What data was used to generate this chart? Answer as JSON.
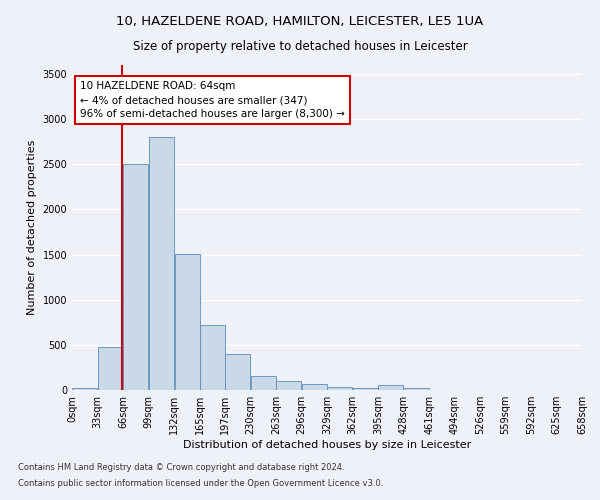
{
  "title1": "10, HAZELDENE ROAD, HAMILTON, LEICESTER, LE5 1UA",
  "title2": "Size of property relative to detached houses in Leicester",
  "xlabel": "Distribution of detached houses by size in Leicester",
  "ylabel": "Number of detached properties",
  "footer1": "Contains HM Land Registry data © Crown copyright and database right 2024.",
  "footer2": "Contains public sector information licensed under the Open Government Licence v3.0.",
  "annotation_title": "10 HAZELDENE ROAD: 64sqm",
  "annotation_line2": "← 4% of detached houses are smaller (347)",
  "annotation_line3": "96% of semi-detached houses are larger (8,300) →",
  "property_size": 64,
  "bar_left_edges": [
    0,
    33,
    66,
    99,
    132,
    165,
    197,
    230,
    263,
    296,
    329,
    362,
    395,
    428,
    461,
    494,
    526,
    559,
    592,
    625
  ],
  "bar_widths": [
    33,
    33,
    33,
    33,
    33,
    33,
    33,
    33,
    33,
    33,
    33,
    33,
    33,
    33,
    33,
    33,
    33,
    33,
    33,
    33
  ],
  "bar_heights": [
    25,
    475,
    2500,
    2800,
    1510,
    725,
    400,
    160,
    100,
    65,
    30,
    20,
    55,
    20,
    5,
    2,
    2,
    2,
    2,
    2
  ],
  "tick_labels": [
    "0sqm",
    "33sqm",
    "66sqm",
    "99sqm",
    "132sqm",
    "165sqm",
    "197sqm",
    "230sqm",
    "263sqm",
    "296sqm",
    "329sqm",
    "362sqm",
    "395sqm",
    "428sqm",
    "461sqm",
    "494sqm",
    "526sqm",
    "559sqm",
    "592sqm",
    "625sqm",
    "658sqm"
  ],
  "bar_color": "#c9d9e8",
  "bar_edge_color": "#5b8db8",
  "vline_color": "#cc0000",
  "vline_x": 64,
  "annotation_box_color": "#ffffff",
  "annotation_box_edge": "#cc0000",
  "background_color": "#eef2f8",
  "grid_color": "#ffffff",
  "ylim": [
    0,
    3600
  ],
  "yticks": [
    0,
    500,
    1000,
    1500,
    2000,
    2500,
    3000,
    3500
  ],
  "title_fontsize": 9.5,
  "subtitle_fontsize": 8.5,
  "axis_label_fontsize": 8,
  "tick_fontsize": 7,
  "annotation_fontsize": 7.5,
  "footer_fontsize": 6
}
